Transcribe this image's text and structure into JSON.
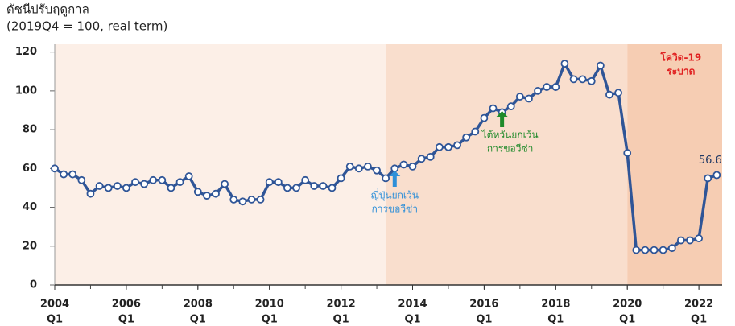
{
  "chart_data": {
    "type": "line",
    "title": "ดัชนีปรับฤดูกาล",
    "subtitle": "(2019Q4 = 100, real term)",
    "x": [
      2004,
      2004.25,
      2004.5,
      2004.75,
      2005,
      2005.25,
      2005.5,
      2005.75,
      2006,
      2006.25,
      2006.5,
      2006.75,
      2007,
      2007.25,
      2007.5,
      2007.75,
      2008,
      2008.25,
      2008.5,
      2008.75,
      2009,
      2009.25,
      2009.5,
      2009.75,
      2010,
      2010.25,
      2010.5,
      2010.75,
      2011,
      2011.25,
      2011.5,
      2011.75,
      2012,
      2012.25,
      2012.5,
      2012.75,
      2013,
      2013.25,
      2013.5,
      2013.75,
      2014,
      2014.25,
      2014.5,
      2014.75,
      2015,
      2015.25,
      2015.5,
      2015.75,
      2016,
      2016.25,
      2016.5,
      2016.75,
      2017,
      2017.25,
      2017.5,
      2017.75,
      2018,
      2018.25,
      2018.5,
      2018.75,
      2019,
      2019.25,
      2019.5,
      2019.75,
      2020,
      2020.25,
      2020.5,
      2020.75,
      2021,
      2021.25,
      2021.5,
      2021.75,
      2022,
      2022.25,
      2022.5
    ],
    "series": [
      {
        "name": "ดัชนีปรับฤดูกาล",
        "color": "#2f5597",
        "values": [
          60,
          57,
          57,
          54,
          47,
          51,
          50,
          51,
          50,
          53,
          52,
          54,
          54,
          50,
          53,
          56,
          48,
          46,
          47,
          52,
          44,
          43,
          44,
          44,
          53,
          53,
          50,
          50,
          54,
          51,
          51,
          50,
          55,
          61,
          60,
          61,
          59,
          55,
          60,
          62,
          61,
          65,
          66,
          71,
          71,
          72,
          76,
          79,
          86,
          91,
          89,
          92,
          97,
          96,
          100,
          102,
          102,
          114,
          106,
          106,
          105,
          113,
          98,
          99,
          68,
          18,
          18,
          18,
          18,
          19,
          23,
          23,
          24,
          55,
          56.6
        ]
      }
    ],
    "xlim": [
      2004,
      2022.65
    ],
    "xticks": [
      {
        "value": 2004,
        "label": "2004",
        "sublabel": "Q1"
      },
      {
        "value": 2006,
        "label": "2006",
        "sublabel": "Q1"
      },
      {
        "value": 2008,
        "label": "2008",
        "sublabel": "Q1"
      },
      {
        "value": 2010,
        "label": "2010",
        "sublabel": "Q1"
      },
      {
        "value": 2012,
        "label": "2012",
        "sublabel": "Q1"
      },
      {
        "value": 2014,
        "label": "2014",
        "sublabel": "Q1"
      },
      {
        "value": 2016,
        "label": "2016",
        "sublabel": "Q1"
      },
      {
        "value": 2018,
        "label": "2018",
        "sublabel": "Q1"
      },
      {
        "value": 2020,
        "label": "2020",
        "sublabel": "Q1"
      },
      {
        "value": 2022,
        "label": "2022",
        "sublabel": "Q1"
      }
    ],
    "ylim": [
      0,
      124
    ],
    "yticks": [
      0,
      20,
      40,
      60,
      80,
      100,
      120
    ],
    "shading": [
      {
        "from": 2004,
        "to": 2013.25,
        "color": "#fcefe7"
      },
      {
        "from": 2013.25,
        "to": 2020,
        "color": "#f9decd"
      },
      {
        "from": 2020,
        "to": 2022.65,
        "color": "#f6cdb3"
      }
    ],
    "annotations": [
      {
        "lines": [
          "โควิด-19",
          "ระบาด"
        ],
        "x": 2021.5,
        "color": "#e02020"
      },
      {
        "lines": [
          "ญี่ปุ่นยกเว้น",
          "การขอวีซ่า"
        ],
        "x": 2013.5,
        "color": "#2e8fd8"
      },
      {
        "lines": [
          "ไต้หวันยกเว้น",
          "การขอวีซ่า"
        ],
        "x": 2016.5,
        "color": "#1f8a2a"
      }
    ]
  }
}
